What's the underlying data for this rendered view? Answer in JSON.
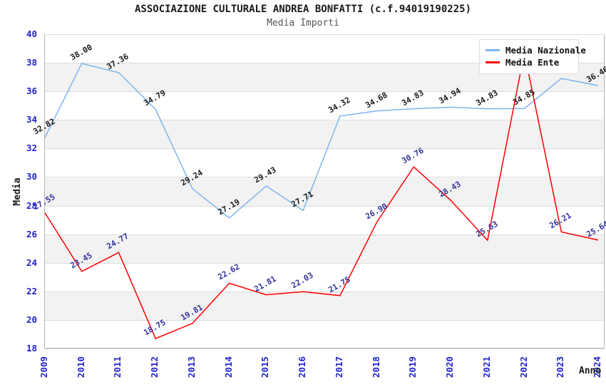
{
  "title": "ASSOCIAZIONE CULTURALE ANDREA BONFATTI (c.f.94019190225)",
  "subtitle": "Media Importi",
  "axes": {
    "y_label": "Media",
    "x_label": "Anno",
    "y_ticks": [
      40,
      38,
      36,
      34,
      32,
      30,
      28,
      26,
      24,
      22,
      20,
      18
    ],
    "x_ticks": [
      "2009",
      "2010",
      "2011",
      "2012",
      "2013",
      "2014",
      "2015",
      "2016",
      "2017",
      "2018",
      "2019",
      "2020",
      "2021",
      "2022",
      "2023",
      "2024"
    ]
  },
  "colors": {
    "nazionale_line": "#7cb5ec",
    "ente_line": "#ff0000",
    "tick_text": "#2222cc",
    "nazionale_label_text": "#1a1a1a",
    "ente_label_text": "#333399",
    "band_gray": "#f2f2f2",
    "gridline": "#dcdcdc"
  },
  "chart_data": {
    "type": "line",
    "title": "ASSOCIAZIONE CULTURALE ANDREA BONFATTI (c.f.94019190225)",
    "subtitle": "Media Importi",
    "xlabel": "Anno",
    "ylabel": "Media",
    "ylim": [
      18,
      40
    ],
    "grid": "horizontal gridlines with alternating gray bands every 2 units",
    "legend_position": "top-right",
    "x": [
      2009,
      2010,
      2011,
      2012,
      2013,
      2014,
      2015,
      2016,
      2017,
      2018,
      2019,
      2020,
      2021,
      2022,
      2023,
      2024
    ],
    "series": [
      {
        "name": "Media Nazionale",
        "color": "#7cb5ec",
        "label_color": "#1a1a1a",
        "values": [
          32.82,
          38.0,
          37.36,
          34.79,
          29.24,
          27.19,
          29.43,
          27.71,
          34.32,
          34.68,
          34.83,
          34.94,
          34.83,
          34.85,
          36.95,
          36.46
        ],
        "point_labels": [
          "32.82",
          "38.00",
          "37.36",
          "34.79",
          "29.24",
          "27.19",
          "29.43",
          "27.71",
          "34.32",
          "34.68",
          "34.83",
          "34.94",
          "34.83",
          "34.85",
          null,
          "36.46"
        ]
      },
      {
        "name": "Media Ente",
        "color": "#ff0000",
        "label_color": "#333399",
        "values": [
          27.55,
          23.45,
          24.77,
          18.75,
          19.81,
          22.62,
          21.81,
          22.03,
          21.75,
          26.9,
          30.76,
          28.43,
          25.63,
          38.75,
          26.21,
          25.64
        ],
        "point_labels": [
          "27.55",
          "23.45",
          "24.77",
          "18.75",
          "19.81",
          "22.62",
          "21.81",
          "22.03",
          "21.75",
          "26.90",
          "30.76",
          "28.43",
          "25.63",
          null,
          "26.21",
          "25.64"
        ]
      }
    ]
  }
}
